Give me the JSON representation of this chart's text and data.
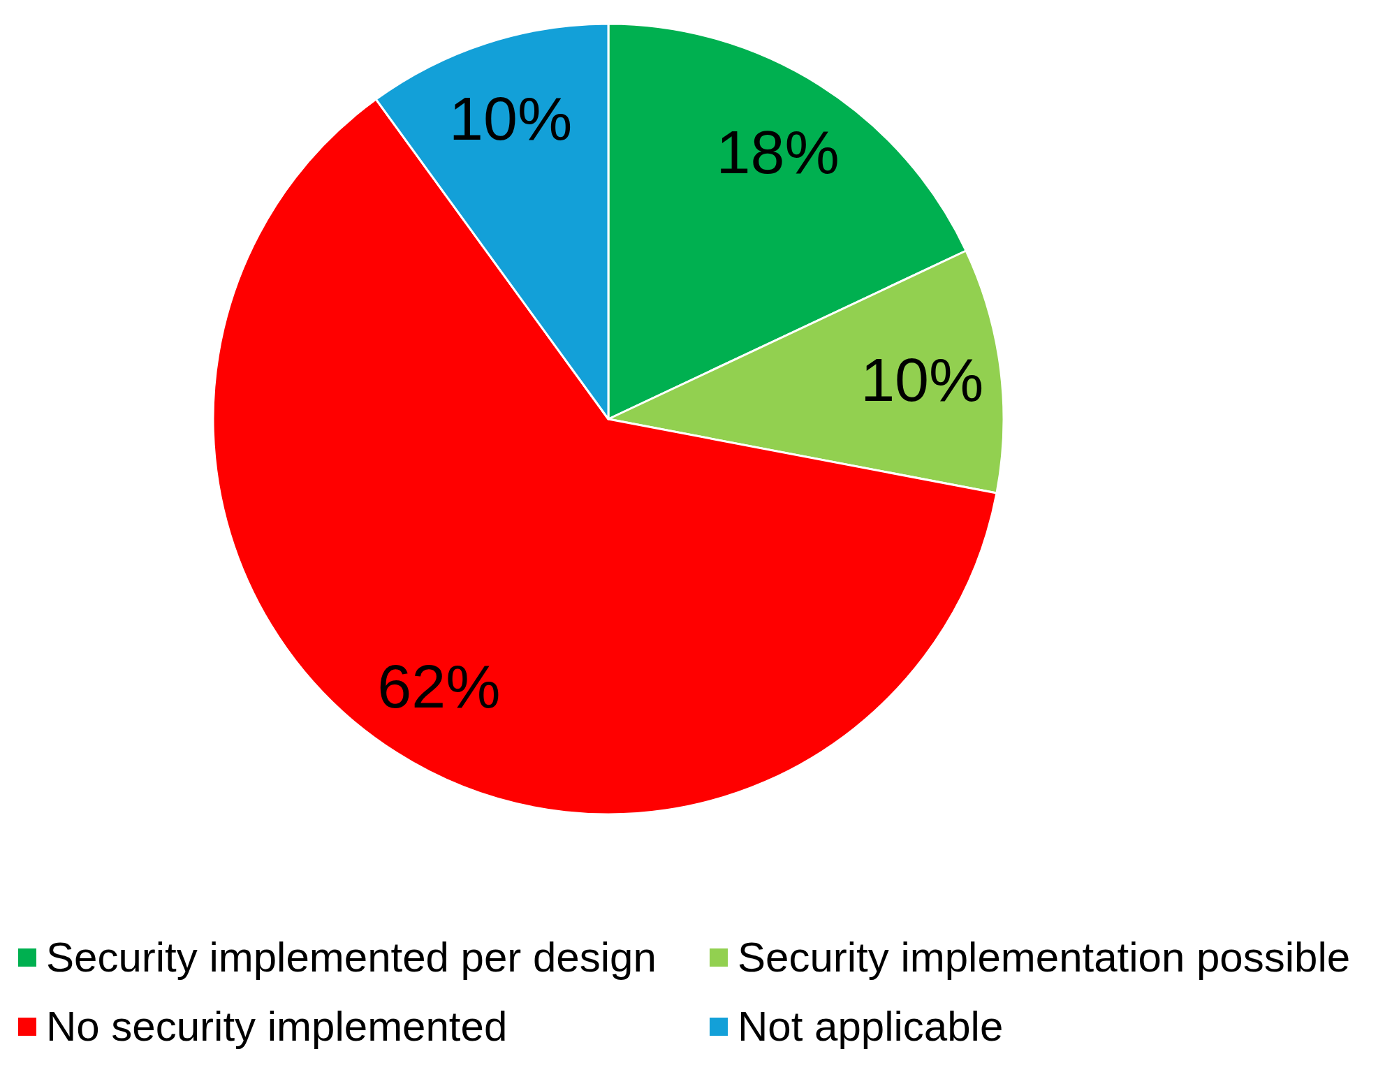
{
  "chart_data": {
    "type": "pie",
    "categories": [
      "Security implemented per design",
      "Security implementation possible",
      "No security implemented",
      "Not applicable"
    ],
    "values": [
      18,
      10,
      62,
      10
    ],
    "colors": [
      "#00b050",
      "#92d050",
      "#ff0000",
      "#13a0d8"
    ],
    "value_labels": [
      "18%",
      "10%",
      "62%",
      "10%"
    ],
    "legend": "bottom"
  }
}
